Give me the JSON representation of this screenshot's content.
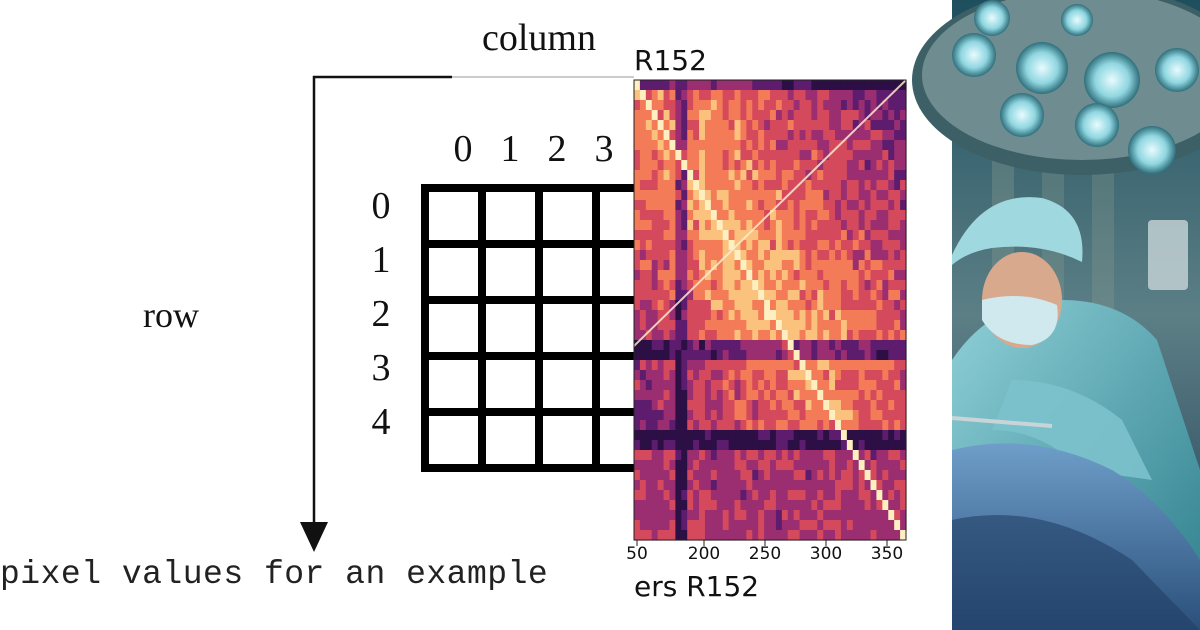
{
  "grid_figure": {
    "column_label": "column",
    "row_label": "row",
    "column_numbers": [
      "0",
      "1",
      "2",
      "3"
    ],
    "row_numbers": [
      "0",
      "1",
      "2",
      "3",
      "4"
    ],
    "caption": "pixel values for an example"
  },
  "heatmap": {
    "title": "R152",
    "xlabel": "ers R152",
    "x_ticks": [
      "50",
      "200",
      "250",
      "300",
      "350"
    ],
    "colormap": [
      "#2c0f45",
      "#5e1c6e",
      "#9b2e70",
      "#d44a5c",
      "#f47b57",
      "#fbc27e",
      "#fdefc0"
    ]
  },
  "photo": {
    "subject": "surgeon-under-operating-lights"
  }
}
